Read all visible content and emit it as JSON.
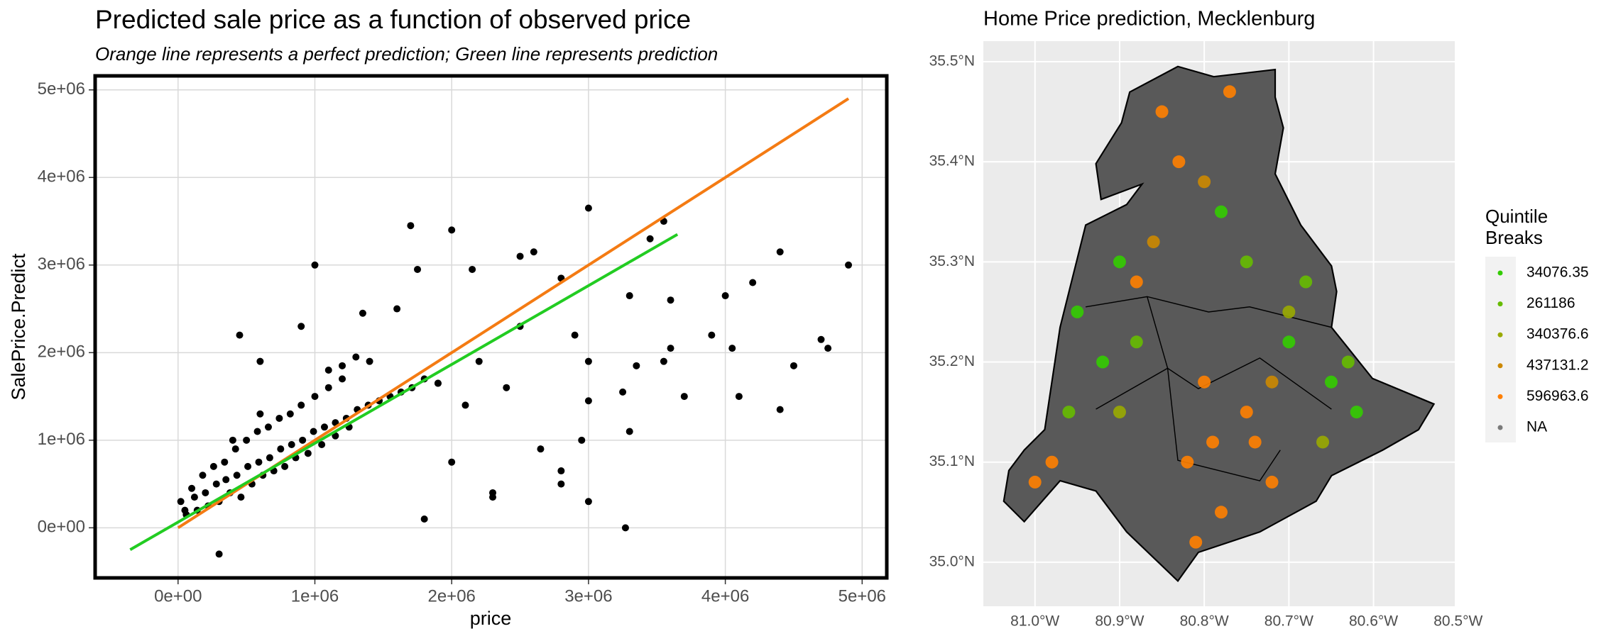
{
  "chart_data": [
    {
      "type": "scatter",
      "title": "Predicted sale price as a function of observed price",
      "subtitle": "Orange line represents a perfect prediction; Green line represents prediction",
      "x_label": "price",
      "y_label": "SalePrice.Predict",
      "xlim": [
        -606000,
        5180000
      ],
      "ylim": [
        -572000,
        5160000
      ],
      "xticks": [
        {
          "value": 0,
          "label": "0e+00"
        },
        {
          "value": 1000000,
          "label": "1e+06"
        },
        {
          "value": 2000000,
          "label": "2e+06"
        },
        {
          "value": 3000000,
          "label": "3e+06"
        },
        {
          "value": 4000000,
          "label": "4e+06"
        },
        {
          "value": 5000000,
          "label": "5e+06"
        }
      ],
      "yticks": [
        {
          "value": 0,
          "label": "0e+00"
        },
        {
          "value": 1000000,
          "label": "1e+06"
        },
        {
          "value": 2000000,
          "label": "2e+06"
        },
        {
          "value": 3000000,
          "label": "3e+06"
        },
        {
          "value": 4000000,
          "label": "4e+06"
        },
        {
          "value": 5000000,
          "label": "5e+06"
        }
      ],
      "grid": true,
      "points": {
        "color": "#000000",
        "x": [
          20000,
          60000,
          100000,
          140000,
          180000,
          220000,
          260000,
          300000,
          340000,
          380000,
          420000,
          460000,
          500000,
          540000,
          580000,
          620000,
          660000,
          700000,
          740000,
          780000,
          820000,
          860000,
          900000,
          950000,
          1000000,
          1050000,
          1100000,
          1150000,
          1200000,
          1250000,
          50000,
          120000,
          200000,
          280000,
          350000,
          430000,
          510000,
          590000,
          670000,
          750000,
          830000,
          910000,
          990000,
          1070000,
          1150000,
          1230000,
          1310000,
          1390000,
          1470000,
          1550000,
          1630000,
          1710000,
          1800000,
          1900000,
          1400000,
          1300000,
          1200000,
          1100000,
          600000,
          400000,
          1700000,
          2000000,
          1000000,
          3000000,
          3550000,
          4900000,
          4400000,
          4200000,
          4000000,
          3600000,
          3300000,
          2800000,
          2600000,
          2500000,
          2150000,
          1750000,
          1350000,
          1600000,
          900000,
          450000,
          600000,
          4750000,
          4500000,
          4050000,
          3900000,
          4100000,
          4400000,
          3700000,
          3550000,
          3350000,
          3250000,
          3000000,
          3000000,
          3000000,
          2800000,
          2800000,
          2650000,
          3300000,
          3270000,
          2950000,
          2300000,
          2300000,
          2000000,
          1800000,
          3600000,
          2900000,
          2500000,
          2200000,
          2400000,
          2100000,
          1900000,
          300000,
          3450000,
          4700000
        ],
        "values": [
          300000,
          150000,
          450000,
          200000,
          600000,
          250000,
          700000,
          300000,
          750000,
          400000,
          900000,
          350000,
          1000000,
          500000,
          1100000,
          600000,
          1150000,
          650000,
          1250000,
          700000,
          1300000,
          800000,
          1400000,
          850000,
          1500000,
          950000,
          1600000,
          1050000,
          1700000,
          1150000,
          200000,
          350000,
          400000,
          500000,
          550000,
          600000,
          700000,
          750000,
          800000,
          900000,
          950000,
          1000000,
          1100000,
          1150000,
          1200000,
          1250000,
          1350000,
          1400000,
          1450000,
          1500000,
          1550000,
          1600000,
          1700000,
          1650000,
          1900000,
          1950000,
          1850000,
          1800000,
          1300000,
          1000000,
          3450000,
          3400000,
          3000000,
          3650000,
          3500000,
          3000000,
          3150000,
          2800000,
          2650000,
          2600000,
          2650000,
          2850000,
          3150000,
          3100000,
          2950000,
          2950000,
          2450000,
          2500000,
          2300000,
          2200000,
          1900000,
          2050000,
          1850000,
          2050000,
          2200000,
          1500000,
          1350000,
          1500000,
          1900000,
          1850000,
          1550000,
          1900000,
          1450000,
          300000,
          650000,
          500000,
          900000,
          1100000,
          0,
          1000000,
          350000,
          400000,
          750000,
          100000,
          2050000,
          2200000,
          2300000,
          1900000,
          1600000,
          1400000,
          1650000,
          -300000,
          3300000,
          2150000
        ]
      },
      "lines": [
        {
          "color": "#f47b13",
          "x": [
            0,
            4900000
          ],
          "values": [
            0,
            4900000
          ]
        },
        {
          "color": "#22cc22",
          "x": [
            -350000,
            3650000
          ],
          "values": [
            -250000,
            3350000
          ]
        }
      ]
    },
    {
      "type": "map",
      "title": "Home Price prediction, Mecklenburg",
      "xlim": [
        -81.061,
        -80.504
      ],
      "ylim": [
        34.956,
        35.5205
      ],
      "xticks": [
        {
          "value": -81.0,
          "label": "81.0°W"
        },
        {
          "value": -80.9,
          "label": "80.9°W"
        },
        {
          "value": -80.8,
          "label": "80.8°W"
        },
        {
          "value": -80.7,
          "label": "80.7°W"
        },
        {
          "value": -80.6,
          "label": "80.6°W"
        },
        {
          "value": -80.5,
          "label": "80.5°W"
        }
      ],
      "yticks": [
        {
          "value": 35.0,
          "label": "35.0°N"
        },
        {
          "value": 35.1,
          "label": "35.1°N"
        },
        {
          "value": 35.2,
          "label": "35.2°N"
        },
        {
          "value": 35.3,
          "label": "35.3°N"
        },
        {
          "value": 35.4,
          "label": "35.4°N"
        },
        {
          "value": 35.5,
          "label": "35.5°N"
        }
      ],
      "grid": true,
      "legend_title": "Quintile Breaks",
      "legend_position": "right",
      "series": [
        {
          "name": "34076.35",
          "color": "#33cc00",
          "x": [
            -80.95,
            -80.9,
            -80.7,
            -80.65,
            -80.92,
            -80.78,
            -80.62
          ],
          "values": [
            35.25,
            35.3,
            35.22,
            35.18,
            35.2,
            35.35,
            35.15
          ]
        },
        {
          "name": "261186",
          "color": "#66bb00",
          "x": [
            -80.68,
            -80.88,
            -80.75,
            -80.63,
            -80.96
          ],
          "values": [
            35.28,
            35.22,
            35.3,
            35.2,
            35.15
          ]
        },
        {
          "name": "340376.6",
          "color": "#99aa00",
          "x": [
            -80.7,
            -80.9,
            -80.66
          ],
          "values": [
            35.25,
            35.15,
            35.12
          ]
        },
        {
          "name": "437131.2",
          "color": "#cc8800",
          "x": [
            -80.86,
            -80.72,
            -80.8
          ],
          "values": [
            35.32,
            35.18,
            35.38
          ]
        },
        {
          "name": "596963.6",
          "color": "#ff7f00",
          "x": [
            -80.82,
            -80.78,
            -80.75,
            -80.8,
            -80.72,
            -80.85,
            -80.77,
            -80.83,
            -80.81,
            -80.79,
            -81.0,
            -80.98,
            -80.74,
            -80.88
          ],
          "values": [
            35.1,
            35.05,
            35.15,
            35.18,
            35.08,
            35.45,
            35.47,
            35.4,
            35.02,
            35.12,
            35.08,
            35.1,
            35.12,
            35.28
          ]
        },
        {
          "name": "NA",
          "color": "#7a7a7a",
          "x": [],
          "values": []
        }
      ]
    }
  ]
}
